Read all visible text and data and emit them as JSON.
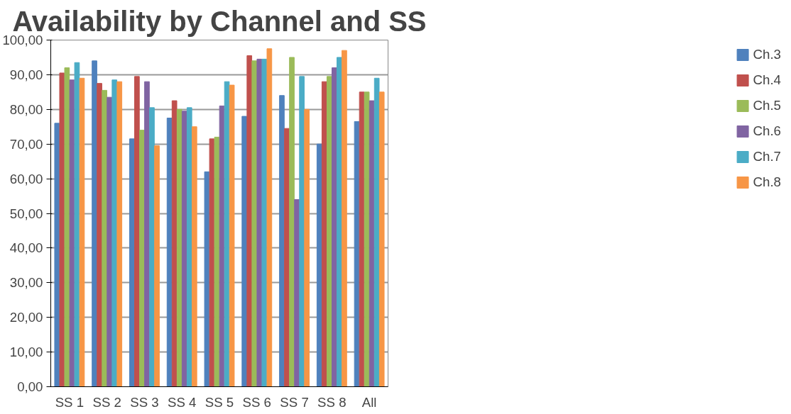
{
  "chart_data": {
    "type": "bar",
    "title": "Availability by Channel and SS",
    "categories": [
      "SS 1",
      "SS 2",
      "SS 3",
      "SS 4",
      "SS 5",
      "SS 6",
      "SS 7",
      "SS 8",
      "All"
    ],
    "series": [
      {
        "name": "Ch.3",
        "color": "#4f81bd",
        "values": [
          76,
          94,
          71.5,
          77.5,
          62,
          78,
          84,
          70,
          76.5
        ]
      },
      {
        "name": "Ch.4",
        "color": "#c0504d",
        "values": [
          90.5,
          87.5,
          89.5,
          82.5,
          71.5,
          95.5,
          74.5,
          88,
          85
        ]
      },
      {
        "name": "Ch.5",
        "color": "#9bbb59",
        "values": [
          92,
          85.5,
          74,
          80,
          72,
          94,
          95,
          89.5,
          85
        ]
      },
      {
        "name": "Ch.6",
        "color": "#8064a2",
        "values": [
          88.5,
          83.5,
          88,
          79.5,
          81,
          94.5,
          54,
          92,
          82.5
        ]
      },
      {
        "name": "Ch.7",
        "color": "#4bacc6",
        "values": [
          93.5,
          88.5,
          80.5,
          80.5,
          88,
          94.5,
          89.5,
          95,
          89
        ]
      },
      {
        "name": "Ch.8",
        "color": "#f79646",
        "values": [
          89,
          88,
          69.5,
          75,
          87,
          97.5,
          80,
          97,
          85
        ]
      }
    ],
    "ylim": [
      0,
      100
    ],
    "yticks": [
      {
        "value": 0,
        "label": "0,00"
      },
      {
        "value": 10,
        "label": "10,00"
      },
      {
        "value": 20,
        "label": "20,00"
      },
      {
        "value": 30,
        "label": "30,00"
      },
      {
        "value": 40,
        "label": "40,00"
      },
      {
        "value": 50,
        "label": "50,00"
      },
      {
        "value": 60,
        "label": "60,00"
      },
      {
        "value": 70,
        "label": "70,00"
      },
      {
        "value": 80,
        "label": "80,00"
      },
      {
        "value": 90,
        "label": "90,00"
      },
      {
        "value": 100,
        "label": "100,00"
      }
    ],
    "grid": "y",
    "legend": "right"
  }
}
